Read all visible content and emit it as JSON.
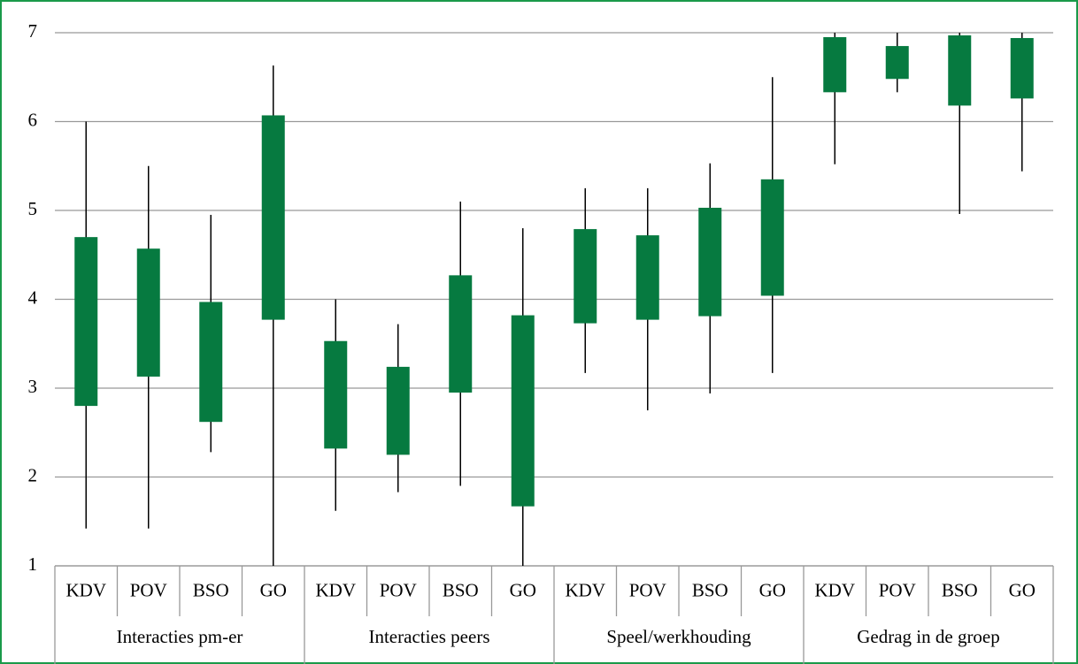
{
  "chart_data": {
    "type": "boxplot",
    "groups": [
      {
        "name": "Interacties pm-er",
        "categories": [
          "KDV",
          "POV",
          "BSO",
          "GO"
        ]
      },
      {
        "name": "Interacties peers",
        "categories": [
          "KDV",
          "POV",
          "BSO",
          "GO"
        ]
      },
      {
        "name": "Speel/werkhouding",
        "categories": [
          "KDV",
          "POV",
          "BSO",
          "GO"
        ]
      },
      {
        "name": "Gedrag in de groep",
        "categories": [
          "KDV",
          "POV",
          "BSO",
          "GO"
        ]
      }
    ],
    "low": [
      1.42,
      1.42,
      2.28,
      1.0,
      1.62,
      1.83,
      1.9,
      1.0,
      3.17,
      2.75,
      2.94,
      3.17,
      5.52,
      6.33,
      4.96,
      5.44
    ],
    "q1": [
      2.8,
      3.13,
      2.62,
      3.77,
      2.32,
      2.25,
      2.95,
      1.67,
      3.73,
      3.77,
      3.81,
      4.04,
      6.33,
      6.48,
      6.18,
      6.26
    ],
    "q3": [
      4.7,
      4.57,
      3.97,
      6.07,
      3.53,
      3.24,
      4.27,
      3.82,
      4.79,
      4.72,
      5.03,
      5.35,
      6.95,
      6.85,
      6.97,
      6.94
    ],
    "high": [
      6.0,
      5.5,
      4.95,
      6.63,
      4.0,
      3.72,
      5.1,
      4.8,
      5.25,
      5.25,
      5.53,
      6.5,
      7.0,
      7.0,
      7.0,
      7.0
    ],
    "color": "#067a40",
    "ylim": [
      1,
      7
    ],
    "yticks": [
      1,
      2,
      3,
      4,
      5,
      6,
      7
    ],
    "grid": true
  }
}
